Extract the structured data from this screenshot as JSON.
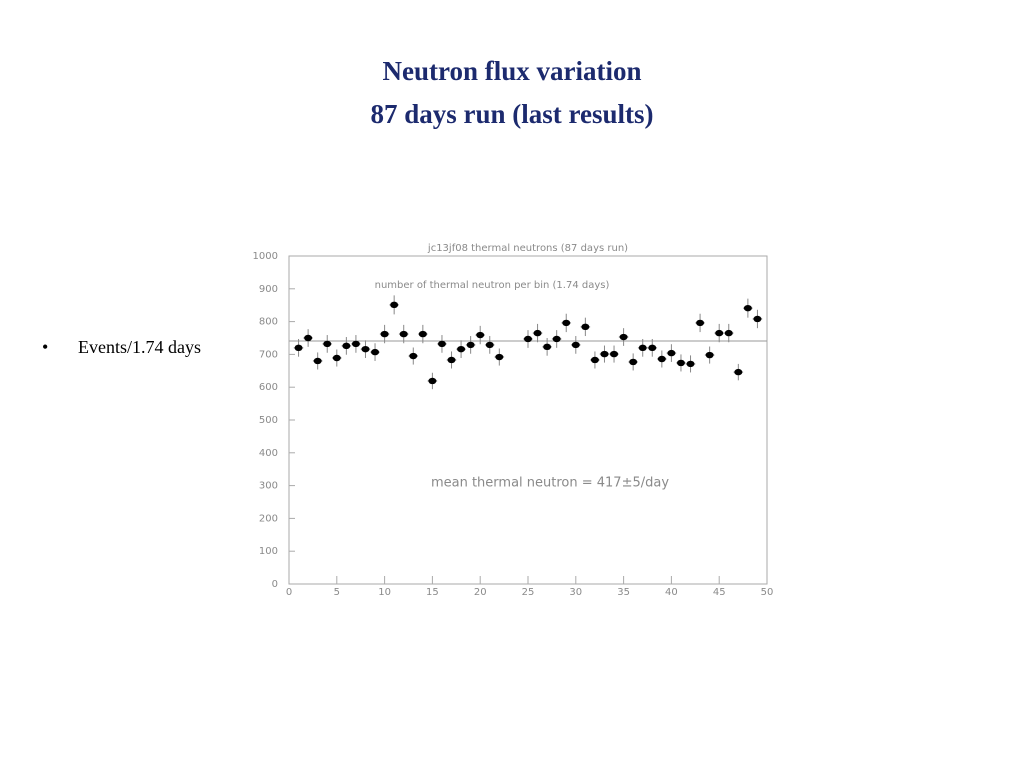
{
  "slide": {
    "title_lines": [
      "Neutron flux variation",
      "87 days run (last results)"
    ],
    "bullet": "Events/1.74 days"
  },
  "chart_data": {
    "type": "scatter",
    "title": "jc13jf08 thermal neutrons (87 days run)",
    "subtitle": "number of thermal neutron per bin (1.74 days)",
    "annotation": "mean thermal neutron = 417±5/day",
    "x": [
      1,
      2,
      3,
      4,
      5,
      6,
      7,
      8,
      9,
      10,
      11,
      12,
      13,
      14,
      15,
      16,
      17,
      18,
      19,
      20,
      21,
      22,
      25,
      26,
      27,
      28,
      29,
      30,
      31,
      32,
      33,
      34,
      35,
      36,
      37,
      38,
      39,
      40,
      41,
      42,
      43,
      44,
      45,
      46,
      47,
      48,
      49
    ],
    "values": [
      720,
      750,
      680,
      732,
      689,
      726,
      732,
      716,
      707,
      762,
      851,
      762,
      695,
      762,
      619,
      732,
      683,
      716,
      729,
      759,
      729,
      692,
      747,
      765,
      723,
      747,
      796,
      729,
      784,
      683,
      701,
      701,
      753,
      677,
      720,
      720,
      686,
      704,
      674,
      671,
      796,
      698,
      765,
      765,
      646,
      841,
      808
    ],
    "errors": [
      27,
      27,
      26,
      27,
      26,
      27,
      27,
      27,
      27,
      28,
      29,
      28,
      26,
      28,
      25,
      27,
      26,
      27,
      27,
      28,
      27,
      26,
      27,
      28,
      27,
      27,
      28,
      27,
      28,
      26,
      26,
      26,
      27,
      26,
      27,
      27,
      26,
      27,
      26,
      26,
      28,
      26,
      28,
      28,
      25,
      29,
      28
    ],
    "mean_line": 741,
    "color": "#000000",
    "xlim": [
      0,
      50
    ],
    "xticks": [
      0,
      5,
      10,
      15,
      20,
      25,
      30,
      35,
      40,
      45,
      50
    ],
    "ylim": [
      0,
      1000
    ],
    "yticks": [
      0,
      100,
      200,
      300,
      400,
      500,
      600,
      700,
      800,
      900,
      1000
    ]
  }
}
